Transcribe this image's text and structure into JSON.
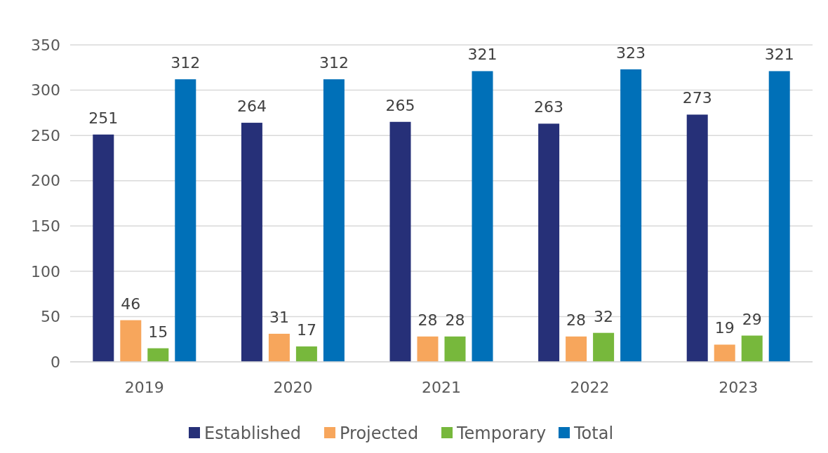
{
  "chart_data": {
    "type": "bar",
    "categories": [
      "2019",
      "2020",
      "2021",
      "2022",
      "2023"
    ],
    "series": [
      {
        "name": "Established",
        "color": "#263078",
        "values": [
          251,
          264,
          265,
          263,
          273
        ]
      },
      {
        "name": "Projected",
        "color": "#f7a65c",
        "values": [
          46,
          31,
          28,
          28,
          19
        ]
      },
      {
        "name": "Temporary",
        "color": "#77b83c",
        "values": [
          15,
          17,
          28,
          32,
          29
        ]
      },
      {
        "name": "Total",
        "color": "#0070b8",
        "values": [
          312,
          312,
          321,
          323,
          321
        ]
      }
    ],
    "ylim": [
      0,
      350
    ],
    "yticks": [
      0,
      50,
      100,
      150,
      200,
      250,
      300,
      350
    ],
    "grid": "y",
    "legend": "bottom",
    "data_labels": true
  }
}
